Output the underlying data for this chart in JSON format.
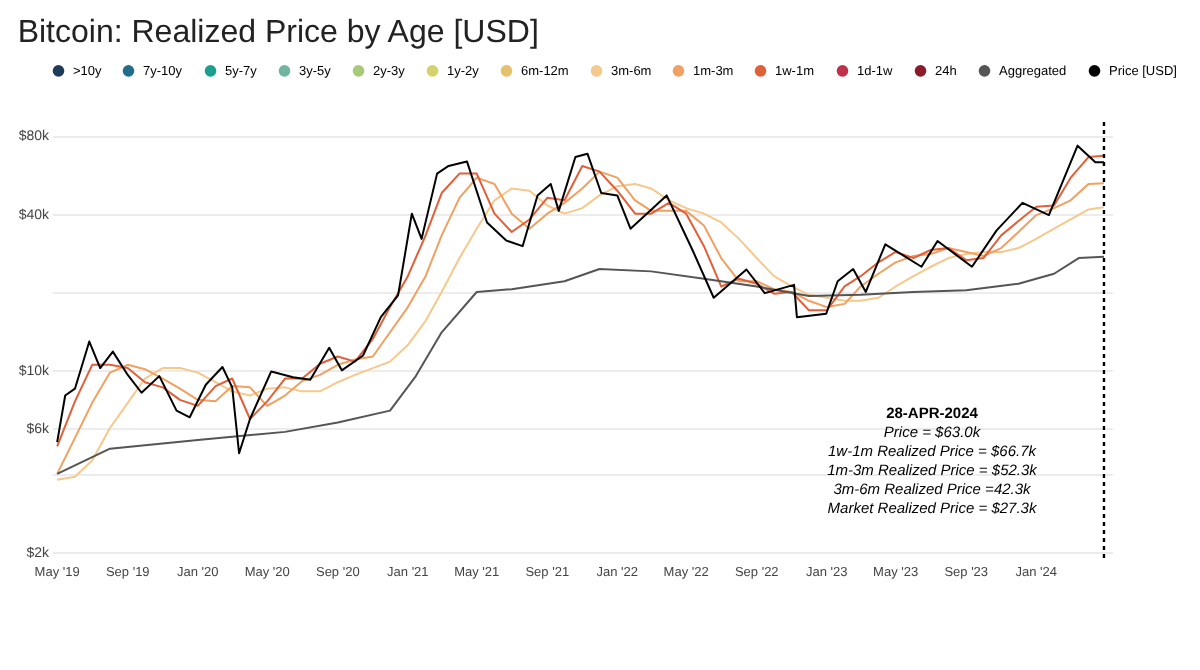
{
  "chart_data": {
    "type": "line",
    "title": "Bitcoin: Realized Price by Age [USD]",
    "log": "y",
    "grid": "y",
    "legend": "top",
    "xlim": [
      "2019-04-22",
      "2024-05-12"
    ],
    "xticks": [
      {
        "value": "2019-05-01",
        "label": "May '19"
      },
      {
        "value": "2019-09-01",
        "label": "Sep '19"
      },
      {
        "value": "2020-01-01",
        "label": "Jan '20"
      },
      {
        "value": "2020-05-01",
        "label": "May '20"
      },
      {
        "value": "2020-09-01",
        "label": "Sep '20"
      },
      {
        "value": "2021-01-01",
        "label": "Jan '21"
      },
      {
        "value": "2021-05-01",
        "label": "May '21"
      },
      {
        "value": "2021-09-01",
        "label": "Sep '21"
      },
      {
        "value": "2022-01-01",
        "label": "Jan '22"
      },
      {
        "value": "2022-05-01",
        "label": "May '22"
      },
      {
        "value": "2022-09-01",
        "label": "Sep '22"
      },
      {
        "value": "2023-01-01",
        "label": "Jan '23"
      },
      {
        "value": "2023-05-01",
        "label": "May '23"
      },
      {
        "value": "2023-09-01",
        "label": "Sep '23"
      },
      {
        "value": "2024-01-01",
        "label": "Jan '24"
      }
    ],
    "ylim": [
      1900,
      90000
    ],
    "yticks": [
      {
        "value": 2000,
        "label": "$2k"
      },
      {
        "value": 4000,
        "label": null
      },
      {
        "value": 6000,
        "label": "$6k"
      },
      {
        "value": 10000,
        "label": "$10k"
      },
      {
        "value": 20000,
        "label": null
      },
      {
        "value": 40000,
        "label": "$40k"
      },
      {
        "value": 80000,
        "label": "$80k"
      }
    ],
    "series": [
      {
        "name": ">10y",
        "color": "#1f3b5a"
      },
      {
        "name": "7y-10y",
        "color": "#1f6f8b"
      },
      {
        "name": "5y-7y",
        "color": "#1a9e8f"
      },
      {
        "name": "3y-5y",
        "color": "#6fb5a0"
      },
      {
        "name": "2y-3y",
        "color": "#a8c87a"
      },
      {
        "name": "1y-2y",
        "color": "#d4d36a"
      },
      {
        "name": "6m-12m",
        "color": "#e6c06b"
      },
      {
        "name": "3m-6m",
        "color": "#f5c88c",
        "x": [
          "2019-05-01",
          "2019-06-01",
          "2019-07-01",
          "2019-08-01",
          "2019-09-01",
          "2019-10-01",
          "2019-11-01",
          "2019-12-01",
          "2020-01-01",
          "2020-02-01",
          "2020-03-01",
          "2020-04-01",
          "2020-05-01",
          "2020-06-01",
          "2020-07-01",
          "2020-08-01",
          "2020-09-01",
          "2020-10-01",
          "2020-11-01",
          "2020-12-01",
          "2021-01-01",
          "2021-02-01",
          "2021-03-01",
          "2021-04-01",
          "2021-05-01",
          "2021-06-01",
          "2021-07-01",
          "2021-08-01",
          "2021-09-01",
          "2021-10-01",
          "2021-11-01",
          "2021-12-01",
          "2022-01-01",
          "2022-02-01",
          "2022-03-01",
          "2022-04-01",
          "2022-05-01",
          "2022-06-01",
          "2022-07-01",
          "2022-08-01",
          "2022-09-01",
          "2022-10-01",
          "2022-11-01",
          "2022-12-01",
          "2023-01-01",
          "2023-02-01",
          "2023-03-01",
          "2023-04-01",
          "2023-05-01",
          "2023-06-01",
          "2023-07-01",
          "2023-08-01",
          "2023-09-01",
          "2023-10-01",
          "2023-11-01",
          "2023-12-01",
          "2024-01-01",
          "2024-02-01",
          "2024-03-01",
          "2024-04-01",
          "2024-04-28"
        ],
        "values": [
          3800,
          3900,
          4500,
          6000,
          7500,
          9300,
          10200,
          10200,
          9800,
          9000,
          8300,
          8000,
          8500,
          8600,
          8300,
          8300,
          9000,
          9600,
          10200,
          10800,
          12500,
          15500,
          20000,
          27000,
          35000,
          45000,
          50000,
          49000,
          43000,
          40000,
          42000,
          47000,
          51000,
          52000,
          50000,
          45000,
          42000,
          40000,
          37000,
          32000,
          27000,
          23000,
          21000,
          19500,
          19000,
          18500,
          18500,
          19000,
          21000,
          23000,
          25000,
          27000,
          28000,
          28500,
          28500,
          29500,
          32000,
          35000,
          38000,
          41500,
          42300
        ]
      },
      {
        "name": "1m-3m",
        "color": "#f0a060",
        "x": [
          "2019-05-01",
          "2019-06-01",
          "2019-07-01",
          "2019-08-01",
          "2019-09-01",
          "2019-10-01",
          "2019-11-01",
          "2019-12-01",
          "2020-01-01",
          "2020-02-01",
          "2020-03-01",
          "2020-04-01",
          "2020-05-01",
          "2020-06-01",
          "2020-07-01",
          "2020-08-01",
          "2020-09-01",
          "2020-10-01",
          "2020-11-01",
          "2020-12-01",
          "2021-01-01",
          "2021-02-01",
          "2021-03-01",
          "2021-04-01",
          "2021-05-01",
          "2021-06-01",
          "2021-07-01",
          "2021-08-01",
          "2021-09-01",
          "2021-10-01",
          "2021-11-01",
          "2021-12-01",
          "2022-01-01",
          "2022-02-01",
          "2022-03-01",
          "2022-04-01",
          "2022-05-01",
          "2022-06-01",
          "2022-07-01",
          "2022-08-01",
          "2022-09-01",
          "2022-10-01",
          "2022-11-01",
          "2022-12-01",
          "2023-01-01",
          "2023-02-01",
          "2023-03-01",
          "2023-04-01",
          "2023-05-01",
          "2023-06-01",
          "2023-07-01",
          "2023-08-01",
          "2023-09-01",
          "2023-10-01",
          "2023-11-01",
          "2023-12-01",
          "2024-01-01",
          "2024-02-01",
          "2024-03-01",
          "2024-04-01",
          "2024-04-28"
        ],
        "values": [
          4000,
          5500,
          7500,
          9800,
          10500,
          10100,
          9300,
          8500,
          7700,
          7600,
          8700,
          8600,
          7300,
          8000,
          9100,
          9600,
          10500,
          11000,
          11300,
          14000,
          17500,
          23000,
          33000,
          46000,
          55000,
          52000,
          40000,
          35000,
          40000,
          44000,
          50000,
          58000,
          55000,
          45000,
          41000,
          41000,
          41000,
          36000,
          27000,
          22000,
          22000,
          20500,
          20000,
          18500,
          17500,
          18000,
          21000,
          23500,
          26000,
          27500,
          28000,
          29500,
          28500,
          27500,
          29500,
          34000,
          39500,
          42000,
          45000,
          52000,
          52300
        ]
      },
      {
        "name": "1w-1m",
        "color": "#e0603a",
        "x": [
          "2019-05-01",
          "2019-06-01",
          "2019-07-01",
          "2019-08-01",
          "2019-09-01",
          "2019-10-01",
          "2019-11-01",
          "2019-12-01",
          "2020-01-01",
          "2020-02-01",
          "2020-03-01",
          "2020-04-01",
          "2020-05-01",
          "2020-06-01",
          "2020-07-01",
          "2020-08-01",
          "2020-09-01",
          "2020-10-01",
          "2020-11-01",
          "2020-12-01",
          "2021-01-01",
          "2021-02-01",
          "2021-03-01",
          "2021-04-01",
          "2021-05-01",
          "2021-06-01",
          "2021-07-01",
          "2021-08-01",
          "2021-09-01",
          "2021-10-01",
          "2021-11-01",
          "2021-12-01",
          "2022-01-01",
          "2022-02-01",
          "2022-03-01",
          "2022-04-01",
          "2022-05-01",
          "2022-06-01",
          "2022-07-01",
          "2022-08-01",
          "2022-09-01",
          "2022-10-01",
          "2022-11-01",
          "2022-12-01",
          "2023-01-01",
          "2023-02-01",
          "2023-03-01",
          "2023-04-01",
          "2023-05-01",
          "2023-06-01",
          "2023-07-01",
          "2023-08-01",
          "2023-09-01",
          "2023-10-01",
          "2023-11-01",
          "2023-12-01",
          "2024-01-01",
          "2024-02-01",
          "2024-03-01",
          "2024-04-01",
          "2024-04-28"
        ],
        "values": [
          5100,
          7600,
          10500,
          10500,
          10200,
          9000,
          8600,
          7700,
          7300,
          8700,
          9300,
          6500,
          7600,
          9300,
          9300,
          10600,
          11300,
          10800,
          13200,
          17500,
          23000,
          33000,
          48000,
          57000,
          57000,
          40000,
          34000,
          38000,
          46000,
          45000,
          61000,
          58000,
          49000,
          40000,
          40000,
          44000,
          40000,
          30000,
          21000,
          22500,
          21500,
          19700,
          20000,
          17000,
          17000,
          21000,
          23000,
          26000,
          28500,
          27000,
          29000,
          29500,
          26500,
          27000,
          33000,
          37500,
          42500,
          43000,
          55000,
          66000,
          66700
        ]
      },
      {
        "name": "1d-1w",
        "color": "#c0304a"
      },
      {
        "name": "24h",
        "color": "#8b1a2a"
      },
      {
        "name": "Aggregated",
        "color": "#555555",
        "x": [
          "2019-05-01",
          "2019-08-01",
          "2020-01-01",
          "2020-06-01",
          "2020-09-01",
          "2020-12-01",
          "2021-01-15",
          "2021-03-01",
          "2021-05-01",
          "2021-07-01",
          "2021-10-01",
          "2021-12-01",
          "2022-03-01",
          "2022-06-01",
          "2022-09-01",
          "2022-12-01",
          "2023-03-01",
          "2023-06-01",
          "2023-09-01",
          "2023-12-01",
          "2024-02-01",
          "2024-03-15",
          "2024-04-28"
        ],
        "values": [
          4000,
          5000,
          5400,
          5800,
          6300,
          7000,
          9500,
          14000,
          20000,
          20500,
          22000,
          24500,
          24000,
          22500,
          21000,
          19300,
          19500,
          20000,
          20300,
          21500,
          23500,
          27000,
          27300
        ]
      },
      {
        "name": "Price [USD]",
        "color": "#000000",
        "x": [
          "2019-05-01",
          "2019-05-15",
          "2019-06-01",
          "2019-06-26",
          "2019-07-15",
          "2019-08-06",
          "2019-09-01",
          "2019-09-25",
          "2019-10-26",
          "2019-11-25",
          "2019-12-18",
          "2020-01-15",
          "2020-02-13",
          "2020-03-01",
          "2020-03-13",
          "2020-04-01",
          "2020-05-08",
          "2020-06-15",
          "2020-07-15",
          "2020-08-17",
          "2020-09-08",
          "2020-10-15",
          "2020-11-15",
          "2020-12-15",
          "2021-01-08",
          "2021-01-25",
          "2021-02-21",
          "2021-03-13",
          "2021-04-14",
          "2021-05-19",
          "2021-06-22",
          "2021-07-20",
          "2021-08-15",
          "2021-09-07",
          "2021-09-21",
          "2021-10-20",
          "2021-11-10",
          "2021-12-04",
          "2022-01-01",
          "2022-01-24",
          "2022-03-28",
          "2022-05-12",
          "2022-06-18",
          "2022-08-14",
          "2022-09-15",
          "2022-11-05",
          "2022-11-10",
          "2022-12-31",
          "2023-01-20",
          "2023-02-16",
          "2023-03-10",
          "2023-04-13",
          "2023-06-15",
          "2023-07-13",
          "2023-09-11",
          "2023-10-24",
          "2023-12-08",
          "2024-01-23",
          "2024-03-13",
          "2024-04-13",
          "2024-04-28"
        ],
        "values": [
          5300,
          8000,
          8500,
          12900,
          10200,
          11800,
          9600,
          8200,
          9500,
          7000,
          6600,
          8800,
          10300,
          8600,
          4800,
          6500,
          9900,
          9400,
          9200,
          12200,
          10000,
          11400,
          16000,
          19400,
          40000,
          32000,
          57000,
          61000,
          63500,
          37000,
          31500,
          30000,
          47000,
          52000,
          41000,
          66000,
          68000,
          48000,
          47000,
          35000,
          47000,
          29000,
          19000,
          24400,
          19800,
          21300,
          16000,
          16500,
          22000,
          24500,
          20000,
          30500,
          25000,
          31400,
          25000,
          34500,
          44000,
          39500,
          73000,
          63000,
          63000
        ]
      }
    ],
    "ref_lines": [
      {
        "axis": "x",
        "value": "2024-04-28",
        "line_style": "dotted",
        "color": "#000000"
      }
    ],
    "annotations": [
      "28-APR-2024",
      "Price = $63.0k",
      "1w-1m Realized Price = $66.7k",
      "1m-3m Realized Price = $52.3k",
      "3m-6m Realized Price =42.3k",
      "Market Realized Price = $27.3k"
    ]
  }
}
